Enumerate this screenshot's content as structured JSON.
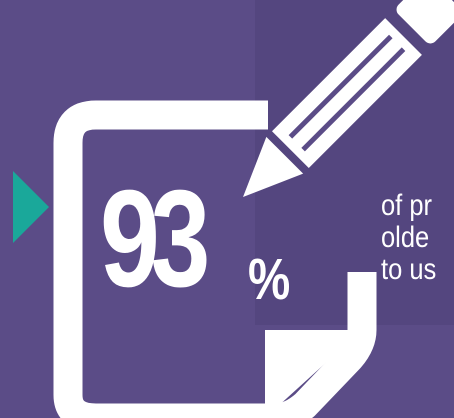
{
  "stat": {
    "number": "93",
    "percent_sign": "%"
  },
  "caption": {
    "line1": "of pr",
    "line2": "olde",
    "line3": "to us"
  },
  "icons": {
    "arrow": "play-arrow-icon",
    "document": "document-pencil-icon"
  },
  "colors": {
    "background": "#5b4c87",
    "accent": "#1aa89a",
    "foreground": "#ffffff"
  }
}
